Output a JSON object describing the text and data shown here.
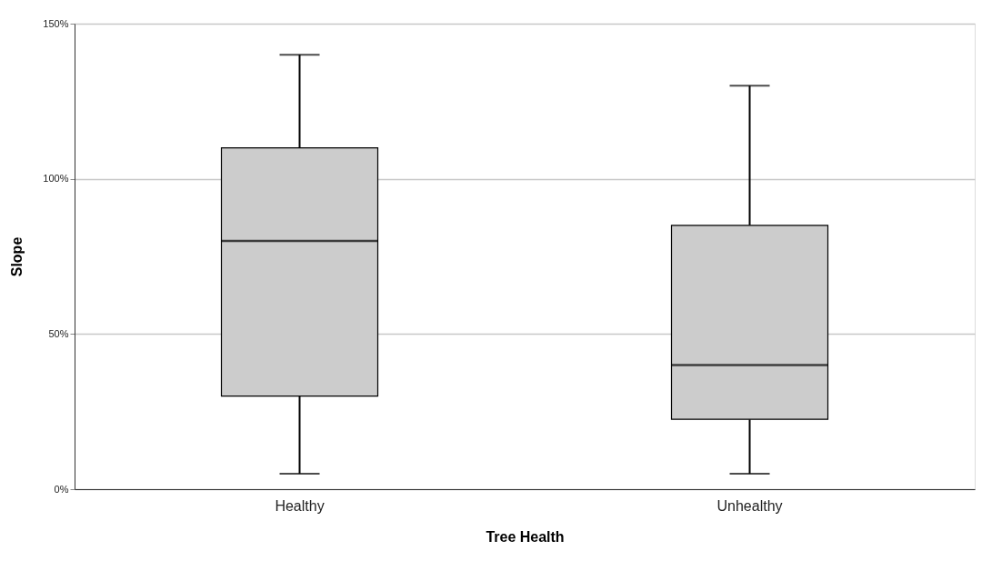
{
  "chart_data": {
    "type": "box",
    "xlabel": "Tree Health",
    "ylabel": "Slope",
    "categories": [
      "Healthy",
      "Unhealthy"
    ],
    "boxes": [
      {
        "low": 5,
        "q1": 30,
        "median": 80,
        "q3": 110,
        "high": 140
      },
      {
        "low": 5,
        "q1": 22.5,
        "median": 40,
        "q3": 85,
        "high": 130
      }
    ],
    "color": "#cccccc",
    "ylim": [
      0,
      150
    ],
    "yticks": [
      {
        "value": 0,
        "label": "0%"
      },
      {
        "value": 50,
        "label": "50%"
      },
      {
        "value": 100,
        "label": "100%"
      },
      {
        "value": 150,
        "label": "150%"
      }
    ],
    "grid": "y"
  }
}
